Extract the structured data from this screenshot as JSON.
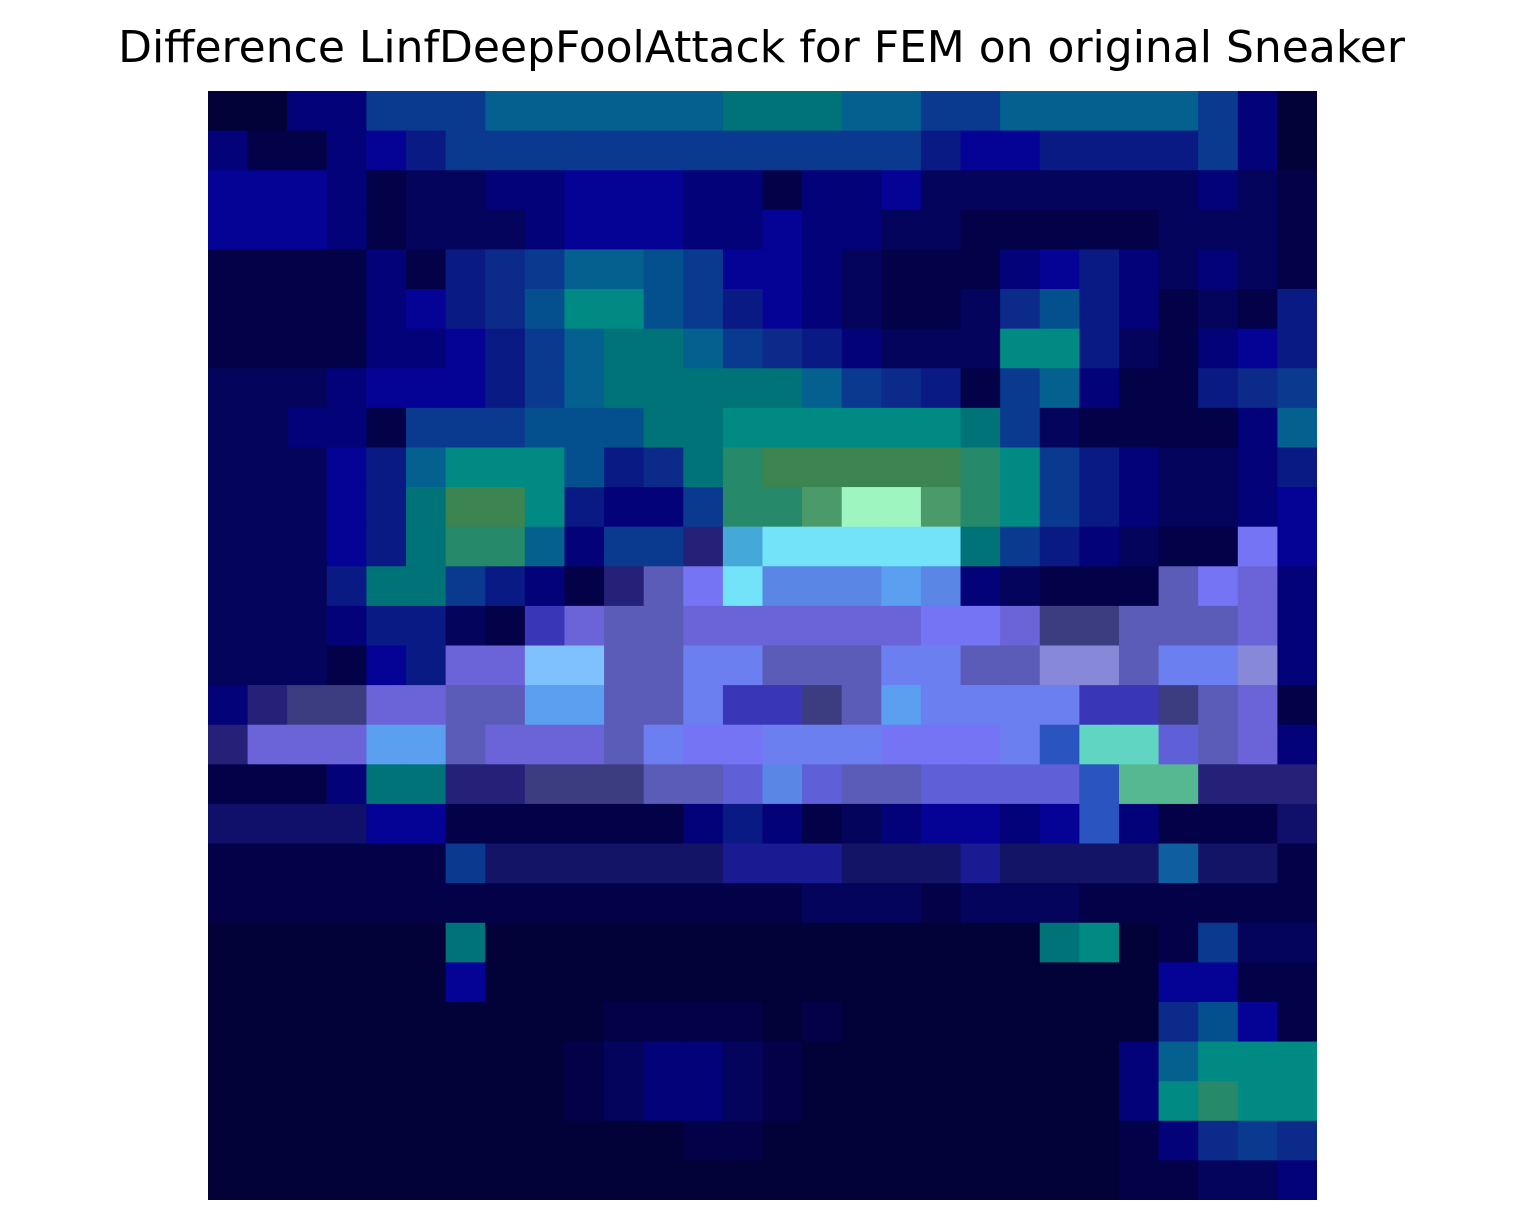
{
  "chart_data": {
    "type": "heatmap",
    "title": "Difference LinfDeepFoolAttack for FEM on original Sneaker",
    "rows": 28,
    "cols": 28,
    "axes_visible": false,
    "grid": false,
    "colormap": "overlay: black→navy→blue→teal→green/cyan→light violet-blue; a single red peak",
    "palette": {
      "a": "#020138",
      "b": "#030249",
      "c": "#04045c",
      "d": "#030278",
      "e": "#050395",
      "f": "#0a1a85",
      "g": "#0b2a8a",
      "h": "#0a3a8f",
      "i": "#04508f",
      "j": "#03608f",
      "k": "#007378",
      "l": "#008a84",
      "m": "#26896a",
      "n": "#3c8450",
      "o": "#4a9a6a",
      "p": "#9ff5c0",
      "q": "#44a8d8",
      "r": "#73e3fa",
      "s": "#252178",
      "t": "#5b5bb8",
      "u": "#7474f5",
      "v": "#ec6666",
      "w": "#5a86e6",
      "x": "#6c7ff0",
      "y": "#6a64d8",
      "z": "#3a36b8",
      "A": "#7fc0ff",
      "B": "#5a9ff0",
      "C": "#3c3c80",
      "D": "#8888d8",
      "E": "#5f5fd8",
      "F": "#60d5c2",
      "G": "#56b890",
      "H": "#2a54c0",
      "I": "#141466",
      "J": "#1a1a92",
      "K": "#0f5fa0",
      "L": "#10106a"
    },
    "cells": [
      "aaddhhhjjjjjjkkkjjhhjjjjjhda",
      "dbbdefhhhhhhhhhhhhfeeffffhda",
      "eeedbccddeeeddbddecccccccdcb",
      "eeedbcccdeeeddeddccbbbbbcccb",
      "bbbbdbfghjjiheedcbbbdefdcdcb",
      "bbbbdefgillihfedcbbcgifdbcbf",
      "bbbbddefhjkkjhgfdcccllfcbdef",
      "cccdeeefhjkkkkkjhgfbhjdbbfgh",
      "ccddbhhhiiikkllllllkhcbbbbdj",
      "cccefjlllifgkmnnnnnmlhfdccdf",
      "cccefknnlfddhmmoppomlhfdccde",
      "cccefkmmjdhhsqrrrrrkhfdcbbue",
      "cccfkkhfdbsturwwwBwdcbbbtuyd",
      "cccdffcbzyttyyyyyyuuyCCtttyd",
      "cccbefyyAAttxxtttxxttDDtxxDd",
      "dsCCyyttBBttxzzCtBxxxxzzCtyb",
      "syyyBBtyyytxuuxxxuuuxHFFEtyd",
      "bbbdkkssCCCttEwEttEEEEHGGsss",
      "LLLLeebbbbbbdfdbcdeedeHdbbbL",
      "bbbbbbhIIIIIIJJJIIIJIIIIKIIb",
      "bbbbbbbbbbbbbbbcccbcccbbbbbb",
      "aaaaaakaaaaaaaaaaaaaaklabhcc",
      "aaaaaaeaaaaaaaaaaaaaaaaaeebb",
      "aaaaaaaaaabbbbabaaaaaaaagieb",
      "aaaaaaaaabcddcbaaaaaaaadjlll",
      "aaaaaaaaabcddcbaaaaaaaadlmll",
      "aaaaaaaaaaaabbaaaaaaaaabdghg",
      "aaaaaaaaaaaaaaaaaaaaaaabbccd"
    ]
  }
}
